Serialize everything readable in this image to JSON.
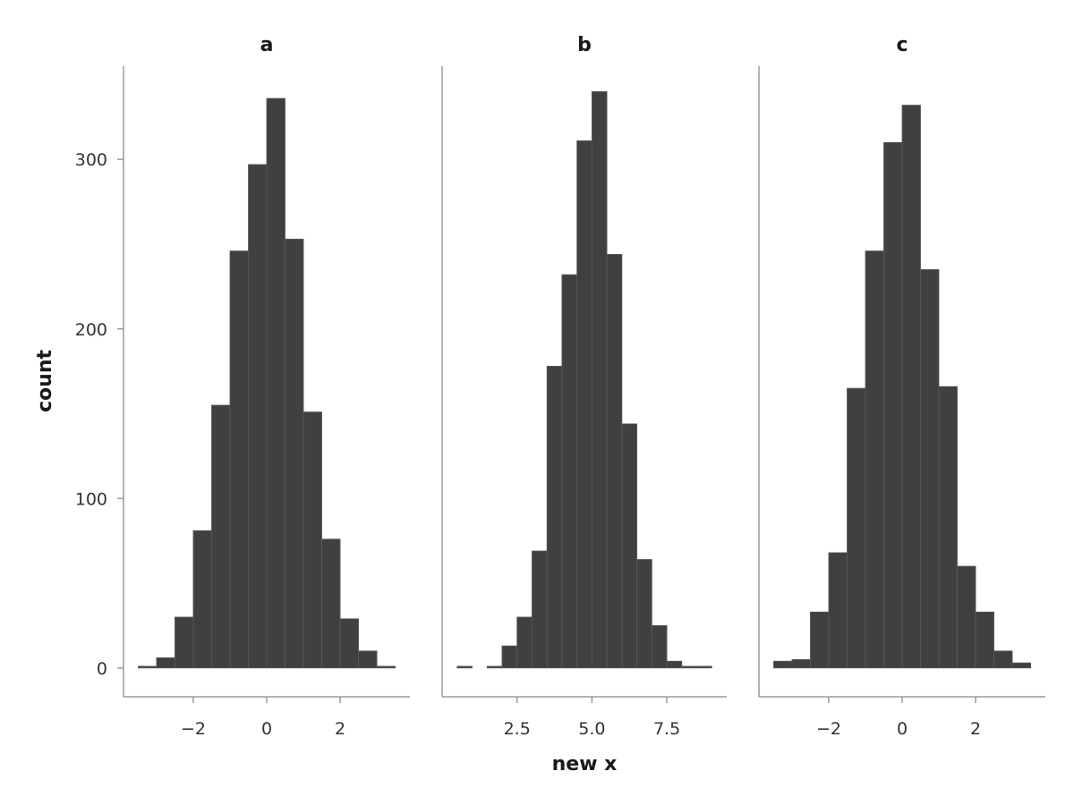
{
  "chart_data": {
    "type": "bar",
    "xlabel": "new x",
    "ylabel": "count",
    "grid": false,
    "bar_color": "#404040",
    "y_ticks": [
      0,
      100,
      200,
      300
    ],
    "ylim": [
      -17,
      355
    ],
    "panels": [
      {
        "title": "a",
        "xlim": [
          -3.9,
          3.9
        ],
        "x_ticks": [
          -2,
          0,
          2
        ],
        "x_tick_labels": [
          "−2",
          "0",
          "2"
        ],
        "bin_edges": [
          -3.5,
          -3.0,
          -2.5,
          -2.0,
          -1.5,
          -1.0,
          -0.5,
          0.0,
          0.5,
          1.0,
          1.5,
          2.0,
          2.5,
          3.0,
          3.5
        ],
        "counts": [
          1,
          6,
          30,
          81,
          155,
          246,
          297,
          336,
          253,
          151,
          76,
          29,
          10,
          1
        ]
      },
      {
        "title": "b",
        "xlim": [
          0.0,
          9.5
        ],
        "x_ticks": [
          2.5,
          5.0,
          7.5
        ],
        "x_tick_labels": [
          "2.5",
          "5.0",
          "7.5"
        ],
        "bin_edges": [
          0.5,
          1.0,
          1.5,
          2.0,
          2.5,
          3.0,
          3.5,
          4.0,
          4.5,
          5.0,
          5.5,
          6.0,
          6.5,
          7.0,
          7.5,
          8.0,
          8.5,
          9.0
        ],
        "counts": [
          1,
          0,
          1,
          13,
          30,
          69,
          178,
          232,
          311,
          340,
          244,
          144,
          64,
          25,
          4,
          1,
          1
        ]
      },
      {
        "title": "c",
        "xlim": [
          -3.9,
          3.9
        ],
        "x_ticks": [
          -2,
          0,
          2
        ],
        "x_tick_labels": [
          "−2",
          "0",
          "2"
        ],
        "bin_edges": [
          -3.5,
          -3.0,
          -2.5,
          -2.0,
          -1.5,
          -1.0,
          -0.5,
          0.0,
          0.5,
          1.0,
          1.5,
          2.0,
          2.5,
          3.0,
          3.5
        ],
        "counts": [
          4,
          5,
          33,
          68,
          165,
          246,
          310,
          332,
          235,
          166,
          60,
          33,
          10,
          3
        ]
      }
    ]
  }
}
